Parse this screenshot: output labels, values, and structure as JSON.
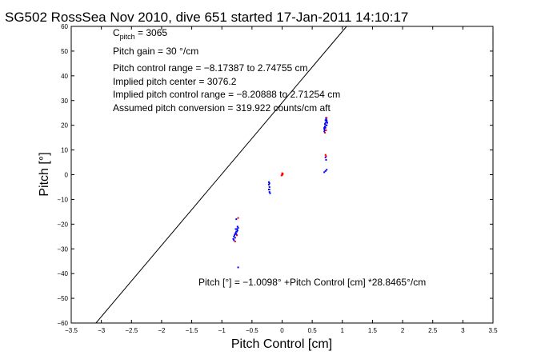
{
  "chart_data": {
    "type": "scatter",
    "title": "SG502 RossSea Nov 2010, dive 651 started 17-Jan-2011 14:10:17",
    "xlabel": "Pitch Control [cm]",
    "ylabel": "Pitch [°]",
    "xlim": [
      -3.5,
      3.5
    ],
    "ylim": [
      -60,
      60
    ],
    "xticks": [
      -3.5,
      -3,
      -2.5,
      -2,
      -1.5,
      -1,
      -0.5,
      0,
      0.5,
      1,
      1.5,
      2,
      2.5,
      3,
      3.5
    ],
    "yticks": [
      -60,
      -50,
      -40,
      -30,
      -20,
      -10,
      0,
      10,
      20,
      30,
      40,
      50,
      60
    ],
    "xtick_labels": [
      "−3.5",
      "−3",
      "−2.5",
      "−2",
      "−1.5",
      "−1",
      "−0.5",
      "0",
      "0.5",
      "1",
      "1.5",
      "2",
      "2.5",
      "3",
      "3.5"
    ],
    "ytick_labels": [
      "−60",
      "−50",
      "−40",
      "−30",
      "−20",
      "−10",
      "0",
      "10",
      "20",
      "30",
      "40",
      "50",
      "60"
    ],
    "grid": false,
    "fit_line": {
      "intercept_x": -1.0098,
      "slope": 28.8465,
      "color": "#000000"
    },
    "annotations": {
      "c_pitch_main": "C",
      "c_pitch_sub": "pitch",
      "c_pitch_value": " = 3065",
      "lines": [
        "Pitch gain = 30 °/cm",
        "Pitch control range = −8.17387 to 2.74755 cm",
        "Implied pitch center = 3076.2",
        "Implied pitch control range = −8.20888 to 2.71254 cm",
        "Assumed pitch conversion = 319.922 counts/cm aft"
      ],
      "fit_label": "Pitch [°] = −1.0098° +Pitch Control [cm] *28.8465°/cm"
    },
    "series": [
      {
        "color": "#0000ff",
        "points": [
          [
            -0.81,
            -26
          ],
          [
            -0.8,
            -25
          ],
          [
            -0.79,
            -24.5
          ],
          [
            -0.78,
            -24
          ],
          [
            -0.77,
            -23.5
          ],
          [
            -0.76,
            -23
          ],
          [
            -0.75,
            -22
          ],
          [
            -0.74,
            -21
          ],
          [
            -0.73,
            -21.5
          ],
          [
            -0.8,
            -26.5
          ],
          [
            -0.78,
            -25.5
          ],
          [
            -0.76,
            -24
          ],
          [
            -0.75,
            -23
          ],
          [
            -0.74,
            -22.5
          ],
          [
            -0.77,
            -22
          ],
          [
            -0.73,
            -37.5
          ],
          [
            -0.76,
            -18
          ],
          [
            -0.22,
            -3
          ],
          [
            -0.22,
            -4
          ],
          [
            -0.21,
            -5
          ],
          [
            -0.21,
            -6
          ],
          [
            -0.21,
            -7
          ],
          [
            -0.2,
            -7.5
          ],
          [
            -0.22,
            -6
          ],
          [
            -0.21,
            -3.5
          ],
          [
            0.7,
            17.5
          ],
          [
            0.7,
            18.5
          ],
          [
            0.71,
            19.5
          ],
          [
            0.71,
            20.5
          ],
          [
            0.72,
            21
          ],
          [
            0.72,
            22
          ],
          [
            0.73,
            22.5
          ],
          [
            0.73,
            23
          ],
          [
            0.74,
            21.5
          ],
          [
            0.74,
            20
          ],
          [
            0.71,
            18
          ],
          [
            0.72,
            19
          ],
          [
            0.73,
            20
          ],
          [
            0.74,
            22
          ],
          [
            0.7,
            19
          ],
          [
            0.75,
            21
          ],
          [
            0.72,
            7
          ],
          [
            0.73,
            6
          ],
          [
            0.7,
            1
          ],
          [
            0.72,
            1.5
          ],
          [
            0.74,
            2
          ]
        ]
      },
      {
        "color": "#ff0000",
        "points": [
          [
            0.0,
            0
          ],
          [
            0.01,
            0.5
          ],
          [
            -0.01,
            -0.3
          ],
          [
            0.0,
            -0.2
          ],
          [
            0.01,
            0.2
          ],
          [
            0.0,
            0.6
          ],
          [
            -0.73,
            -17.5
          ],
          [
            -0.78,
            -27
          ],
          [
            -0.75,
            -24.5
          ],
          [
            0.71,
            17
          ],
          [
            0.73,
            18
          ],
          [
            0.74,
            23
          ],
          [
            0.72,
            8
          ],
          [
            0.73,
            7.5
          ]
        ]
      }
    ]
  }
}
